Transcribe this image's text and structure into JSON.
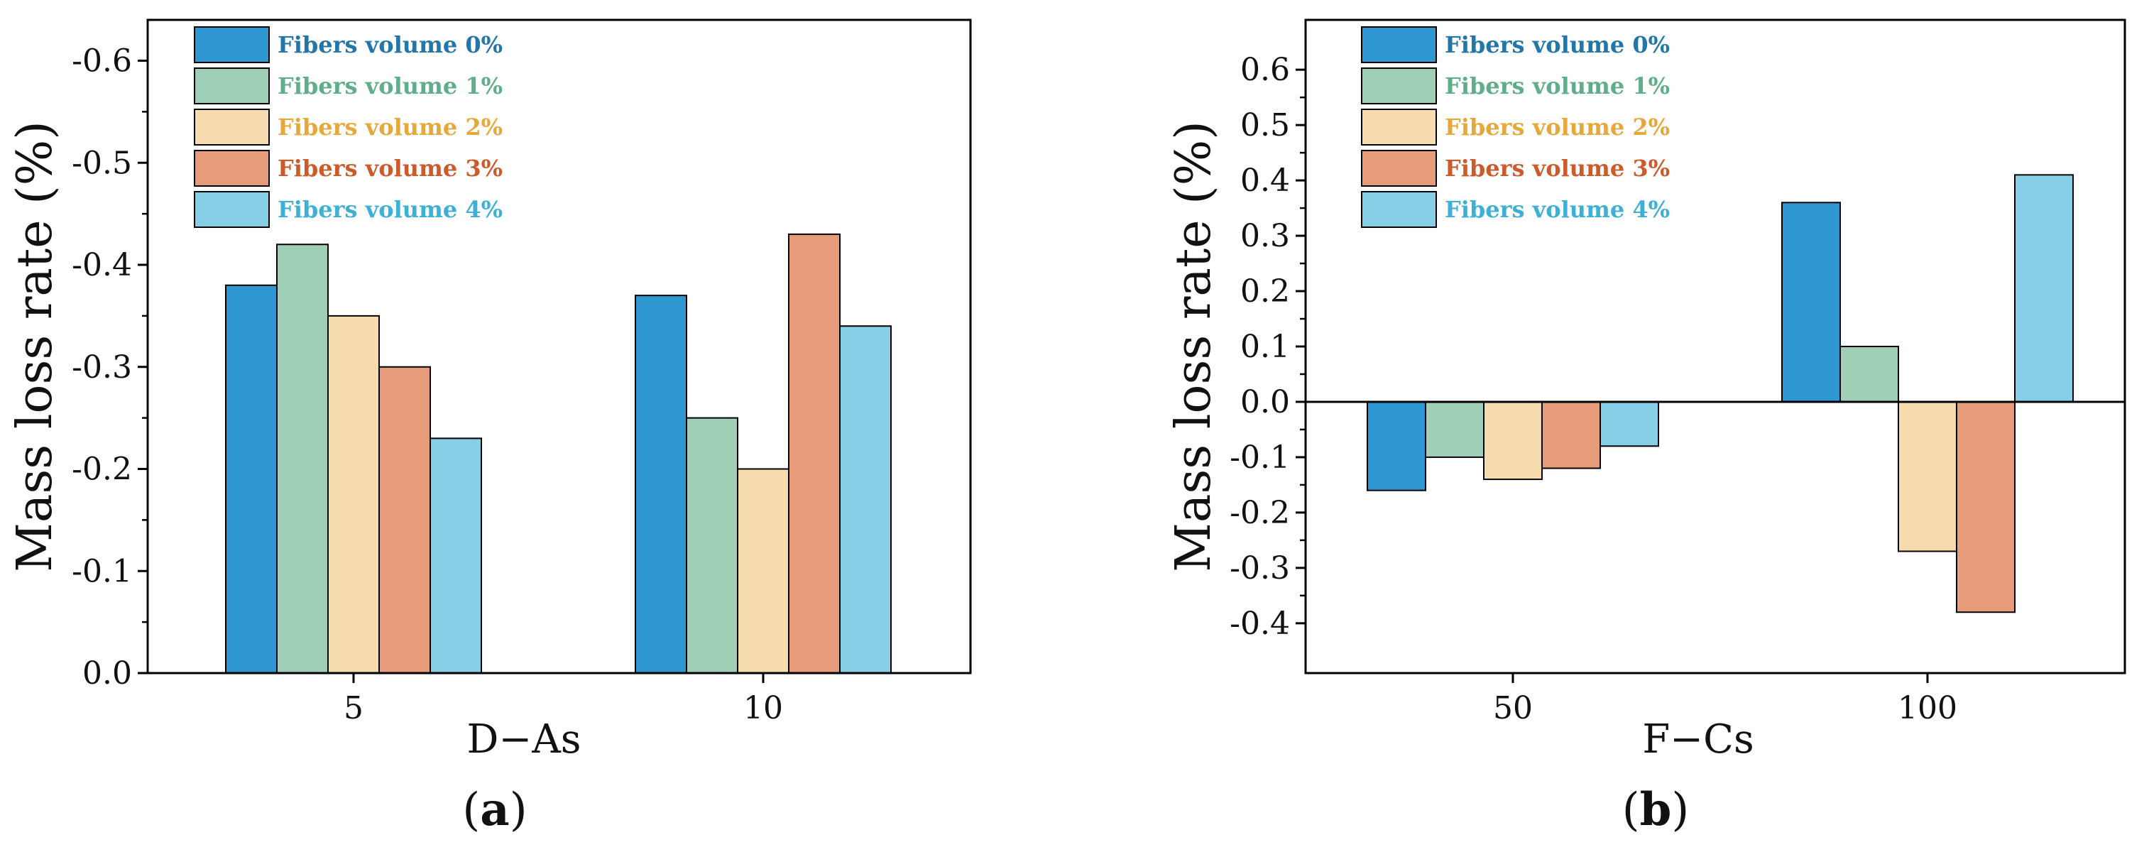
{
  "colors": {
    "fiber_0": "#2e97d1",
    "fiber_1": "#a0cfb8",
    "fiber_2": "#f6dbae",
    "fiber_3": "#e69b7b",
    "fiber_4": "#86cfe6",
    "legend_text": [
      "#2276a8",
      "#5fae8a",
      "#e7a83b",
      "#cd5a2a",
      "#3db0d6"
    ]
  },
  "chart_data": [
    {
      "type": "bar",
      "panel": "a",
      "panel_label": {
        "open": "(",
        "letter": "a",
        "close": ")"
      },
      "xlabel": "D−As",
      "ylabel": "Mass loss rate (%)",
      "categories": [
        "5",
        "10"
      ],
      "ylim": [
        0.0,
        -0.64
      ],
      "y_ticks": [
        0.0,
        -0.1,
        -0.2,
        -0.3,
        -0.4,
        -0.5,
        -0.6
      ],
      "y_tick_labels": [
        "0.0",
        "-0.1",
        "-0.2",
        "-0.3",
        "-0.4",
        "-0.5",
        "-0.6"
      ],
      "legend_position": "top-left",
      "series": [
        {
          "name": "Fibers volume 0%",
          "values": [
            -0.38,
            -0.37
          ]
        },
        {
          "name": "Fibers volume 1%",
          "values": [
            -0.42,
            -0.25
          ]
        },
        {
          "name": "Fibers volume 2%",
          "values": [
            -0.35,
            -0.2
          ]
        },
        {
          "name": "Fibers volume 3%",
          "values": [
            -0.3,
            -0.43
          ]
        },
        {
          "name": "Fibers volume 4%",
          "values": [
            -0.23,
            -0.34
          ]
        }
      ]
    },
    {
      "type": "bar",
      "panel": "b",
      "panel_label": {
        "open": "(",
        "letter": "b",
        "close": ")"
      },
      "xlabel": "F−Cs",
      "ylabel": "Mass loss rate (%)",
      "categories": [
        "50",
        "100"
      ],
      "ylim": [
        -0.49,
        0.69
      ],
      "y_ticks": [
        -0.4,
        -0.3,
        -0.2,
        -0.1,
        0.0,
        0.1,
        0.2,
        0.3,
        0.4,
        0.5,
        0.6
      ],
      "y_tick_labels": [
        "-0.4",
        "-0.3",
        "-0.2",
        "-0.1",
        "0.0",
        "0.1",
        "0.2",
        "0.3",
        "0.4",
        "0.5",
        "0.6"
      ],
      "legend_position": "top-left",
      "series": [
        {
          "name": "Fibers volume 0%",
          "values": [
            -0.16,
            0.36
          ]
        },
        {
          "name": "Fibers volume 1%",
          "values": [
            -0.1,
            0.1
          ]
        },
        {
          "name": "Fibers volume 2%",
          "values": [
            -0.14,
            -0.27
          ]
        },
        {
          "name": "Fibers volume 3%",
          "values": [
            -0.12,
            -0.38
          ]
        },
        {
          "name": "Fibers volume 4%",
          "values": [
            -0.08,
            0.41
          ]
        }
      ]
    }
  ]
}
